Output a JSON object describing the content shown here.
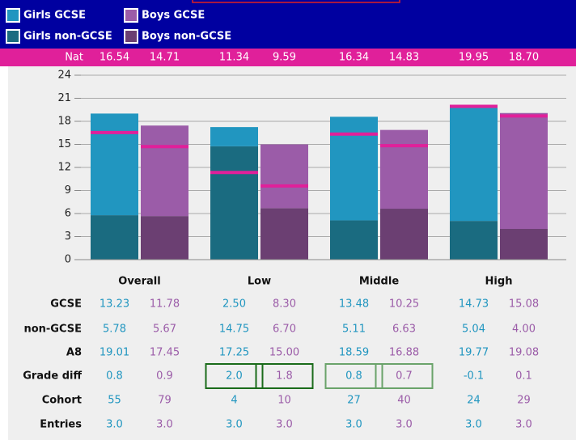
{
  "chart_data": {
    "type": "bar",
    "categories": [
      "Overall",
      "Low",
      "Middle",
      "High"
    ],
    "series": [
      {
        "name": "Girls GCSE",
        "color": "#2196c0",
        "values": [
          13.23,
          2.5,
          13.48,
          14.73
        ],
        "value_labels": [
          "13.23",
          "2.50",
          "13.48",
          "14.73"
        ]
      },
      {
        "name": "Boys GCSE",
        "color": "#9b5ca8",
        "values": [
          11.78,
          8.3,
          10.25,
          15.08
        ],
        "value_labels": [
          "11.78",
          "8.30",
          "10.25",
          "15.08"
        ]
      },
      {
        "name": "Girls non-GCSE",
        "color": "#1a6b80",
        "values": [
          5.78,
          14.75,
          5.11,
          5.04
        ],
        "value_labels": [
          "5.78",
          "14.75",
          "5.11",
          "5.04"
        ]
      },
      {
        "name": "Boys non-GCSE",
        "color": "#6b3f72",
        "values": [
          5.67,
          6.7,
          6.63,
          4.0
        ],
        "value_labels": [
          "5.67",
          "6.70",
          "6.63",
          "4.00"
        ]
      }
    ],
    "nat": {
      "label": "Nat",
      "color": "#e0209a",
      "values": [
        16.54,
        14.71,
        11.34,
        9.59,
        16.34,
        14.83,
        19.95,
        18.7
      ],
      "value_labels": [
        "16.54",
        "14.71",
        "11.34",
        "9.59",
        "16.34",
        "14.83",
        "19.95",
        "18.70"
      ]
    },
    "ylim": [
      0,
      24
    ],
    "yticks": [
      0,
      3,
      6,
      9,
      12,
      15,
      18,
      21,
      24
    ],
    "grid": true,
    "table": {
      "rows": [
        {
          "label": "GCSE"
        },
        {
          "label": "non-GCSE"
        },
        {
          "label": "A8",
          "values": [
            "19.01",
            "17.45",
            "17.25",
            "15.00",
            "18.59",
            "16.88",
            "19.77",
            "19.08"
          ]
        },
        {
          "label": "Grade diff",
          "values": [
            "0.8",
            "0.9",
            "2.0",
            "1.8",
            "0.8",
            "0.7",
            "-0.1",
            "0.1"
          ]
        },
        {
          "label": "Cohort",
          "values": [
            "55",
            "79",
            "4",
            "10",
            "27",
            "40",
            "24",
            "29"
          ]
        },
        {
          "label": "Entries",
          "values": [
            "3.0",
            "3.0",
            "3.0",
            "3.0",
            "3.0",
            "3.0",
            "3.0",
            "3.0"
          ]
        }
      ]
    }
  }
}
